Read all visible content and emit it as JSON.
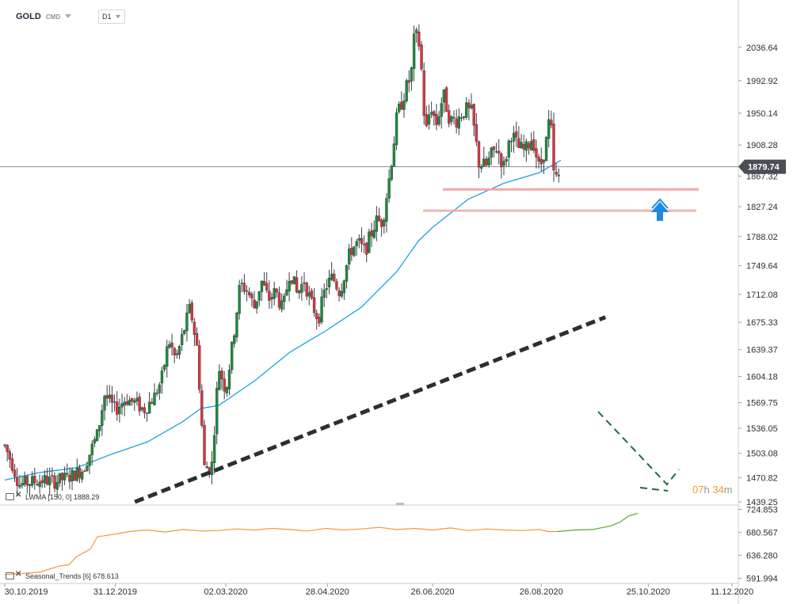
{
  "header": {
    "symbol": "GOLD",
    "exchange": "CMD",
    "timeframe": "D1"
  },
  "indicators": {
    "main": {
      "name": "LWMA",
      "params": "[150, 0]",
      "value": "1888.29"
    },
    "sub": {
      "name": "Seasonal_Trends",
      "params": "[6]",
      "value": "678.613"
    }
  },
  "countdown": {
    "hours": "07",
    "h_unit": "h",
    "minutes": "34",
    "m_unit": "m"
  },
  "colors": {
    "bull": "#1f8a3a",
    "bear": "#d9343f",
    "lwma": "#1aa3e0",
    "trendline": "#2b2f33",
    "support": "#f4a6a6",
    "arrow": "#1e88e5",
    "seasonal_orange": "#f29a3a",
    "seasonal_green": "#5aa832",
    "current_price_bg": "#4a4f55"
  },
  "chart_data": {
    "type": "candlestick",
    "timeframe": "D1",
    "x_range": [
      "2019-10-30",
      "2020-12-11"
    ],
    "x_ticks": [
      "30.10.2019",
      "31.12.2019",
      "02.03.2020",
      "28.04.2020",
      "26.06.2020",
      "26.08.2020",
      "25.10.2020",
      "11.12.2020"
    ],
    "ylim": [
      1439.25,
      2076.0
    ],
    "y_ticks": [
      "2036.64",
      "1992.92",
      "1950.14",
      "1908.28",
      "1867.32",
      "1827.24",
      "1788.02",
      "1749.64",
      "1712.08",
      "1675.33",
      "1639.37",
      "1604.18",
      "1569.75",
      "1536.05",
      "1503.08",
      "1470.82",
      "1439.25"
    ],
    "current_price": "1879.74",
    "current_price_value": 1879.74,
    "price_path": [
      [
        0,
        1513
      ],
      [
        4,
        1490
      ],
      [
        8,
        1462
      ],
      [
        14,
        1465
      ],
      [
        22,
        1468
      ],
      [
        28,
        1466
      ],
      [
        36,
        1472
      ],
      [
        44,
        1482
      ],
      [
        52,
        1528
      ],
      [
        56,
        1580
      ],
      [
        62,
        1560
      ],
      [
        68,
        1575
      ],
      [
        74,
        1568
      ],
      [
        78,
        1560
      ],
      [
        84,
        1578
      ],
      [
        88,
        1600
      ],
      [
        92,
        1652
      ],
      [
        96,
        1625
      ],
      [
        100,
        1660
      ],
      [
        104,
        1695
      ],
      [
        108,
        1640
      ],
      [
        112,
        1485
      ],
      [
        116,
        1482
      ],
      [
        120,
        1618
      ],
      [
        124,
        1585
      ],
      [
        128,
        1650
      ],
      [
        132,
        1725
      ],
      [
        136,
        1718
      ],
      [
        140,
        1695
      ],
      [
        144,
        1730
      ],
      [
        148,
        1705
      ],
      [
        152,
        1716
      ],
      [
        156,
        1690
      ],
      [
        160,
        1745
      ],
      [
        164,
        1712
      ],
      [
        168,
        1730
      ],
      [
        172,
        1700
      ],
      [
        176,
        1680
      ],
      [
        180,
        1722
      ],
      [
        184,
        1735
      ],
      [
        188,
        1715
      ],
      [
        194,
        1770
      ],
      [
        198,
        1780
      ],
      [
        202,
        1768
      ],
      [
        208,
        1808
      ],
      [
        212,
        1808
      ],
      [
        216,
        1870
      ],
      [
        220,
        1945
      ],
      [
        224,
        1975
      ],
      [
        228,
        2000
      ],
      [
        230,
        2056
      ],
      [
        233,
        2038
      ],
      [
        236,
        1920
      ],
      [
        239,
        1962
      ],
      [
        242,
        1935
      ],
      [
        246,
        1975
      ],
      [
        250,
        1940
      ],
      [
        254,
        1942
      ],
      [
        258,
        1955
      ],
      [
        262,
        1950
      ],
      [
        266,
        1885
      ],
      [
        270,
        1880
      ],
      [
        273,
        1895
      ],
      [
        276,
        1905
      ],
      [
        280,
        1880
      ],
      [
        284,
        1925
      ],
      [
        288,
        1905
      ],
      [
        292,
        1900
      ],
      [
        296,
        1920
      ],
      [
        300,
        1875
      ],
      [
        304,
        1915
      ],
      [
        306,
        1950
      ],
      [
        308,
        1870
      ],
      [
        310,
        1862
      ],
      [
        312,
        1875
      ]
    ],
    "lwma_path": [
      [
        0,
        1468
      ],
      [
        20,
        1478
      ],
      [
        40,
        1484
      ],
      [
        60,
        1502
      ],
      [
        80,
        1518
      ],
      [
        100,
        1545
      ],
      [
        110,
        1562
      ],
      [
        120,
        1566
      ],
      [
        140,
        1598
      ],
      [
        160,
        1636
      ],
      [
        180,
        1664
      ],
      [
        200,
        1695
      ],
      [
        220,
        1742
      ],
      [
        232,
        1782
      ],
      [
        240,
        1800
      ],
      [
        260,
        1837
      ],
      [
        280,
        1858
      ],
      [
        300,
        1872
      ],
      [
        312,
        1888.29
      ]
    ],
    "trendline": {
      "start": [
        73,
        1439.25
      ],
      "end": [
        337,
        1682
      ]
    },
    "support_levels": [
      1850,
      1822
    ],
    "seasonal": {
      "ylim": [
        585.0,
        727.0
      ],
      "y_ticks": [
        "724.853",
        "680.567",
        "636.280",
        "591.994"
      ],
      "path": [
        [
          0,
          599
        ],
        [
          10,
          601
        ],
        [
          20,
          604
        ],
        [
          30,
          615
        ],
        [
          36,
          618
        ],
        [
          40,
          633
        ],
        [
          48,
          648
        ],
        [
          52,
          672
        ],
        [
          60,
          676
        ],
        [
          70,
          682
        ],
        [
          80,
          685
        ],
        [
          90,
          681
        ],
        [
          100,
          686
        ],
        [
          110,
          683
        ],
        [
          120,
          684
        ],
        [
          130,
          687
        ],
        [
          140,
          685
        ],
        [
          150,
          688
        ],
        [
          160,
          686
        ],
        [
          170,
          683
        ],
        [
          180,
          688
        ],
        [
          190,
          685
        ],
        [
          200,
          687
        ],
        [
          210,
          690
        ],
        [
          220,
          686
        ],
        [
          230,
          688
        ],
        [
          240,
          685
        ],
        [
          250,
          689
        ],
        [
          260,
          684
        ],
        [
          270,
          687
        ],
        [
          280,
          685
        ],
        [
          290,
          684
        ],
        [
          300,
          686
        ],
        [
          305,
          682
        ],
        [
          310,
          682
        ],
        [
          320,
          685
        ],
        [
          330,
          686
        ],
        [
          340,
          693
        ],
        [
          345,
          700
        ],
        [
          350,
          712
        ],
        [
          352,
          714
        ],
        [
          355,
          717
        ]
      ],
      "green_from": 310
    }
  }
}
